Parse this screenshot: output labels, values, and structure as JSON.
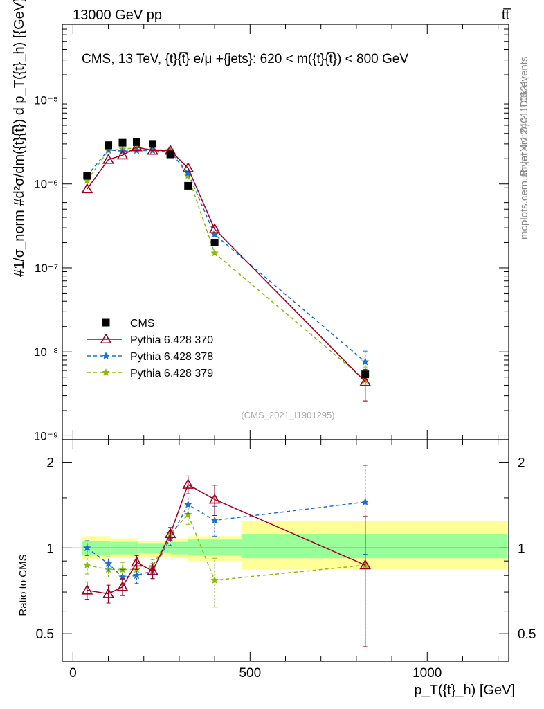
{
  "header": {
    "left": "13000 GeV pp",
    "right": "tt̅"
  },
  "title": "CMS, 13 TeV, {t}{t̅} e/μ +{jets}: 620 < m({t}{t̅}) < 800 GeV",
  "side_label_top": "Rivet 4.1.0, ≥ 100k events",
  "side_label_bottom": "mcplots.cern.ch [arXiv:2401.10621]",
  "watermark": "(CMS_2021_I1901295)",
  "chart_data": [
    {
      "type": "scatter",
      "panel": "main",
      "ylabel": "#1/σ_norm #d²σ/dm({t}{t̅}) d p_T({t}_h) [{GeV}⁻²]",
      "yscale": "log",
      "ylim": [
        9e-10,
        8e-05
      ],
      "ytick_labels": [
        "10⁻⁹",
        "10⁻⁸",
        "10⁻⁷",
        "10⁻⁶",
        "10⁻⁵"
      ],
      "ytick_values": [
        1e-09,
        1e-08,
        1e-07,
        1e-06,
        1e-05
      ],
      "xlim": [
        -30,
        1230
      ],
      "legend": [
        "CMS",
        "Pythia 6.428 370",
        "Pythia 6.428 378",
        "Pythia 6.428 379"
      ],
      "legend_position": "lower-left",
      "series": [
        {
          "name": "CMS",
          "color": "#000000",
          "marker": "square",
          "x": [
            40,
            100,
            140,
            180,
            225,
            275,
            325,
            400,
            825
          ],
          "y": [
            1.25e-06,
            2.9e-06,
            3.1e-06,
            3.15e-06,
            3e-06,
            2.25e-06,
            9.5e-07,
            2e-07,
            5.4e-09
          ]
        },
        {
          "name": "Pythia 6.428 370",
          "color": "#a00020",
          "marker": "triangle",
          "dash": "solid",
          "x": [
            40,
            100,
            140,
            180,
            225,
            275,
            325,
            400,
            825
          ],
          "y": [
            8.7e-07,
            1.95e-06,
            2.2e-06,
            2.75e-06,
            2.5e-06,
            2.5e-06,
            1.55e-06,
            2.9e-07,
            4.4e-09
          ],
          "err_lo": [
            0,
            0,
            0,
            0,
            0,
            0,
            0,
            0,
            1.8e-09
          ],
          "err_hi": [
            0,
            0,
            0,
            0,
            0,
            0,
            0,
            0,
            1.8e-09
          ]
        },
        {
          "name": "Pythia 6.428 378",
          "color": "#1a6fd0",
          "marker": "star",
          "dash": "dashed",
          "x": [
            40,
            100,
            140,
            180,
            225,
            275,
            325,
            400,
            825
          ],
          "y": [
            1.25e-06,
            2.55e-06,
            2.45e-06,
            2.5e-06,
            2.5e-06,
            2.4e-06,
            1.35e-06,
            2.5e-07,
            7.6e-09
          ],
          "err_lo": [
            0,
            0,
            0,
            0,
            0,
            0,
            0,
            0,
            2.6e-09
          ],
          "err_hi": [
            0,
            0,
            0,
            0,
            0,
            0,
            0,
            0,
            2.6e-09
          ]
        },
        {
          "name": "Pythia 6.428 379",
          "color": "#88bb11",
          "marker": "star",
          "dash": "dashed",
          "x": [
            40,
            100,
            140,
            180,
            225,
            275,
            325,
            400,
            825
          ],
          "y": [
            1.1e-06,
            2.5e-06,
            2.6e-06,
            2.7e-06,
            2.55e-06,
            2.55e-06,
            1.25e-06,
            1.5e-07,
            4.6e-09
          ],
          "err_lo": [
            0,
            0,
            0,
            0,
            0,
            0,
            0,
            0,
            2e-09
          ],
          "err_hi": [
            0,
            0,
            0,
            0,
            0,
            0,
            0,
            0,
            2e-09
          ]
        }
      ]
    },
    {
      "type": "scatter",
      "panel": "ratio",
      "ylabel": "Ratio to CMS",
      "yscale": "log",
      "ylim": [
        0.4,
        2.4
      ],
      "ytick_labels": [
        "0.5",
        "1",
        "2"
      ],
      "ytick_values": [
        0.5,
        1,
        2
      ],
      "xlabel": "p_T({t}_h) [GeV]",
      "xlim": [
        -30,
        1230
      ],
      "xtick_labels": [
        "0",
        "500",
        "1000"
      ],
      "xtick_values": [
        0,
        500,
        1000
      ],
      "bands": {
        "bins": [
          [
            0,
            80
          ],
          [
            80,
            160
          ],
          [
            160,
            250
          ],
          [
            250,
            300
          ],
          [
            300,
            450
          ],
          [
            450,
            1200
          ]
        ],
        "inner": [
          [
            0.94,
            1.06
          ],
          [
            0.95,
            1.05
          ],
          [
            0.96,
            1.04
          ],
          [
            0.95,
            1.05
          ],
          [
            0.94,
            1.07
          ],
          [
            0.92,
            1.12
          ]
        ],
        "outer": [
          [
            0.91,
            1.1
          ],
          [
            0.92,
            1.08
          ],
          [
            0.93,
            1.06
          ],
          [
            0.92,
            1.08
          ],
          [
            0.9,
            1.1
          ],
          [
            0.84,
            1.24
          ]
        ],
        "inner_color": "#99ff99",
        "outer_color": "#ffff99"
      },
      "series": [
        {
          "name": "Pythia 6.428 370",
          "color": "#a00020",
          "marker": "triangle",
          "dash": "solid",
          "x": [
            40,
            100,
            140,
            180,
            225,
            275,
            325,
            400,
            825
          ],
          "y": [
            0.71,
            0.69,
            0.73,
            0.89,
            0.83,
            1.12,
            1.67,
            1.48,
            0.87
          ],
          "err_lo": [
            0.05,
            0.05,
            0.05,
            0.05,
            0.05,
            0.06,
            0.12,
            0.18,
            0.42
          ],
          "err_hi": [
            0.05,
            0.05,
            0.05,
            0.05,
            0.05,
            0.06,
            0.12,
            0.18,
            0.42
          ]
        },
        {
          "name": "Pythia 6.428 378",
          "color": "#1a6fd0",
          "marker": "star",
          "dash": "dashed",
          "x": [
            40,
            100,
            140,
            180,
            225,
            275,
            325,
            400,
            825
          ],
          "y": [
            1.0,
            0.88,
            0.79,
            0.8,
            0.83,
            1.08,
            1.42,
            1.25,
            1.45
          ],
          "err_lo": [
            0.06,
            0.05,
            0.05,
            0.05,
            0.05,
            0.06,
            0.1,
            0.15,
            0.5
          ],
          "err_hi": [
            0.06,
            0.05,
            0.05,
            0.05,
            0.05,
            0.06,
            0.1,
            0.15,
            0.5
          ]
        },
        {
          "name": "Pythia 6.428 379",
          "color": "#88bb11",
          "marker": "star",
          "dash": "dashed",
          "x": [
            40,
            100,
            140,
            180,
            225,
            275,
            325,
            400,
            825
          ],
          "y": [
            0.87,
            0.84,
            0.84,
            0.84,
            0.86,
            1.12,
            1.31,
            0.77,
            0.87
          ],
          "err_lo": [
            0.06,
            0.05,
            0.05,
            0.05,
            0.05,
            0.06,
            0.1,
            0.15,
            0.42
          ],
          "err_hi": [
            0.06,
            0.05,
            0.05,
            0.05,
            0.05,
            0.06,
            0.1,
            0.15,
            0.42
          ]
        }
      ]
    }
  ]
}
